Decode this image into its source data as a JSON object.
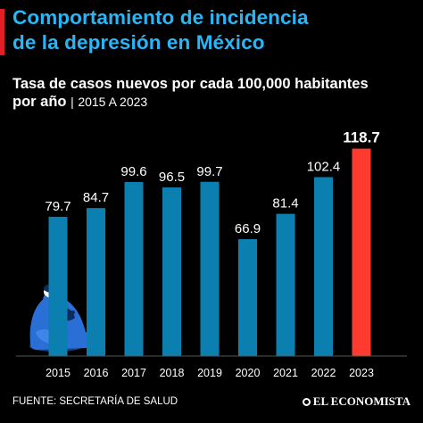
{
  "title": [
    "Comportamiento de incidencia",
    "de la depresión en México"
  ],
  "subtitle": {
    "main": "Tasa de casos nuevos por cada 100,000 habitantes",
    "prefix": "por año",
    "sep": "|",
    "range": "2015 A 2023"
  },
  "footer": {
    "source": "FUENTE: SECRETARÍA DE SALUD",
    "brand": "EL ECONOMISTA"
  },
  "colors": {
    "title": "#29b6f6",
    "bar": "#0b7fb0",
    "highlight": "#ff3b30",
    "accent": "#e31e24",
    "figure": "#2a6fd6"
  },
  "chart_data": {
    "type": "bar",
    "categories": [
      "2015",
      "2016",
      "2017",
      "2018",
      "2019",
      "2020",
      "2021",
      "2022",
      "2023"
    ],
    "values": [
      79.7,
      84.7,
      99.6,
      96.5,
      99.7,
      66.9,
      81.4,
      102.4,
      118.7
    ],
    "labels": [
      "79.7",
      "84.7",
      "99.6",
      "96.5",
      "99.7",
      "66.9",
      "81.4",
      "102.4",
      "118.7"
    ],
    "highlight_index": 8,
    "ylim": [
      0,
      120
    ],
    "grid": false,
    "legend": "none"
  }
}
